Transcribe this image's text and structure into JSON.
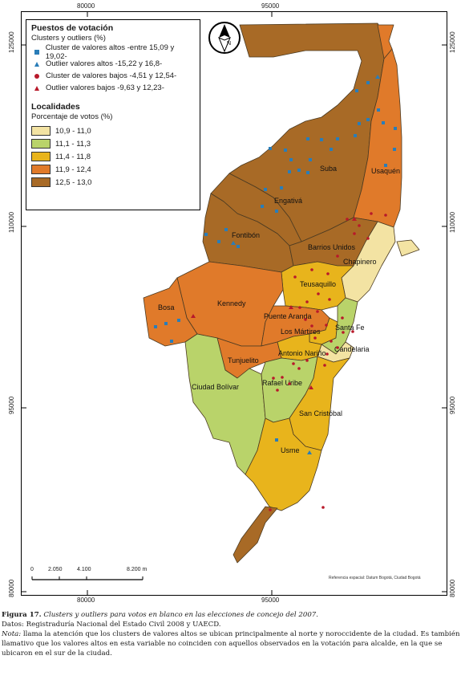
{
  "map": {
    "ticks_top": [
      "80000",
      "95000"
    ],
    "ticks_bottom": [
      "80000",
      "95000"
    ],
    "ticks_left": [
      "125000",
      "110000",
      "95000",
      "80000"
    ],
    "ticks_right": [
      "125000",
      "110000",
      "95000",
      "80000"
    ],
    "north_letter": "N",
    "scale_labels": [
      "0",
      "2.050",
      "4.100",
      "8.200 m"
    ],
    "reference_text": "Referencia espacial: Datum Bogotá, Ciudad Bogotá",
    "localities": [
      "Suba",
      "Usaquén",
      "Engativá",
      "Fontibón",
      "Barrios Unidos",
      "Chapinero",
      "Teusaquillo",
      "Kennedy",
      "Bosa",
      "Puente Aranda",
      "Los Mártires",
      "Santa Fe",
      "Antonio Nariño",
      "Candelaria",
      "Tunjuelito",
      "Ciudad Bolívar",
      "Rafael Uribe",
      "San Cristóbal",
      "Usme"
    ],
    "category_colors": {
      "c1": "#f3e3a3",
      "c2": "#b9d36a",
      "c3": "#e8b41c",
      "c4": "#e07a2a",
      "c5": "#a86a26"
    }
  },
  "legend": {
    "title_points": "Puestos de votación",
    "subtitle_points": "Clusters y outliers (%)",
    "points": [
      {
        "symbol": "blue-square",
        "label": "Cluster de valores altos -entre 15,09 y 19,02-"
      },
      {
        "symbol": "blue-triangle",
        "label": "Outlier valores altos -15,22 y 16,8-"
      },
      {
        "symbol": "red-circle",
        "label": "Cluster de valores bajos -4,51 y 12,54-"
      },
      {
        "symbol": "red-triangle",
        "label": "Outlier valores bajos -9,63 y 12,23-"
      }
    ],
    "title_localities": "Localidades",
    "subtitle_localities": "Porcentaje de votos (%)",
    "classes": [
      {
        "label": "10,9 - 11,0",
        "color": "#f3e3a3"
      },
      {
        "label": "11,1 - 11,3",
        "color": "#b9d36a"
      },
      {
        "label": "11,4 - 11,8",
        "color": "#e8b41c"
      },
      {
        "label": "11,9 - 12,4",
        "color": "#e07a2a"
      },
      {
        "label": "12,5 - 13,0",
        "color": "#a86a26"
      }
    ]
  },
  "caption": {
    "figure_label": "Figura 17.",
    "figure_title": "Clusters y outliers para votos en blanco en las elecciones de concejo del 2007.",
    "sources": "Datos: Registraduría Nacional del Estado Civil 2008 y UAECD.",
    "note_label": "Nota:",
    "note_text": "llama la atención que los clusters de valores altos se ubican principalmente al norte y noroccidente de la ciudad. Es también llamativo que los valores altos en esta variable no coinciden con aquellos observados en la votación para alcalde, en la que se ubicaron en el sur de la ciudad."
  }
}
